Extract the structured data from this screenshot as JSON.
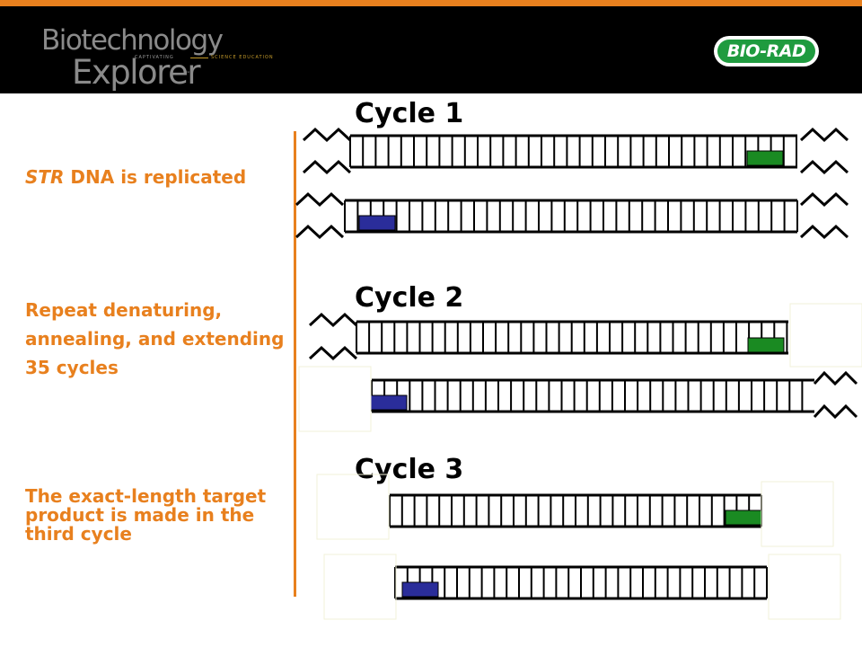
{
  "colors": {
    "accent": "#e8801e",
    "header_bg": "#000000",
    "brand_green": "#1f9b3f",
    "primer_forward": "#1a8a22",
    "primer_reverse": "#2a2d9a"
  },
  "header": {
    "logo_line1": "Biotechnology",
    "logo_line2": "Explorer",
    "logo_tm": "™",
    "tagline_left": "CAPTIVATING",
    "tagline_right": "SCIENCE EDUCATION",
    "brand": "BIO-RAD"
  },
  "labels": {
    "str_italic": "STR",
    "str_rest": " DNA is replicated",
    "repeat": "Repeat denaturing, annealing, and extending 35 cycles",
    "exact": "The exact-length target product is made in the third cycle"
  },
  "cycles": [
    "Cycle 1",
    "Cycle 2",
    "Cycle 3"
  ]
}
